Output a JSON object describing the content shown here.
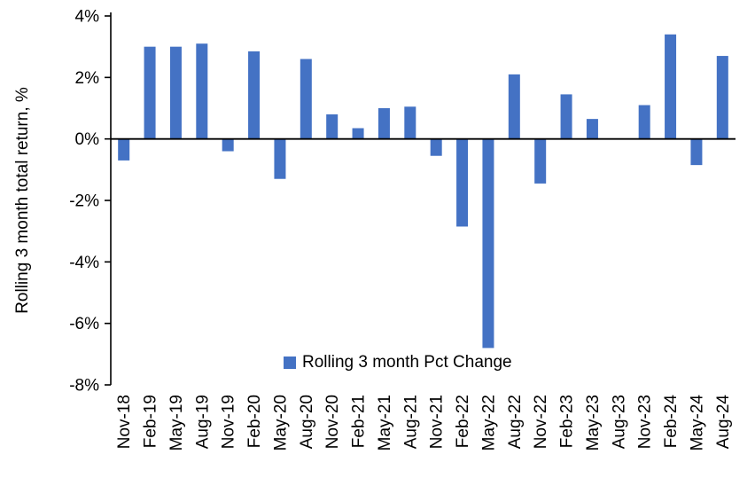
{
  "chart_data": {
    "type": "bar",
    "title": "",
    "xlabel": "",
    "ylabel": "Rolling 3 month total return, %",
    "ylim": [
      -8,
      4
    ],
    "ytick_step": 2,
    "ytick_labels": [
      "4%",
      "2%",
      "0%",
      "-2%",
      "-4%",
      "-6%",
      "-8%"
    ],
    "grid": false,
    "legend_position": "bottom-center-inside",
    "legend_label": "Rolling 3 month Pct Change",
    "bar_color": "#4472C4",
    "axis_color": "#000000",
    "categories": [
      "Nov-18",
      "Feb-19",
      "May-19",
      "Aug-19",
      "Nov-19",
      "Feb-20",
      "May-20",
      "Aug-20",
      "Nov-20",
      "Feb-21",
      "May-21",
      "Aug-21",
      "Nov-21",
      "Feb-22",
      "May-22",
      "Aug-22",
      "Nov-22",
      "Feb-23",
      "May-23",
      "Aug-23",
      "Nov-23",
      "Feb-24",
      "May-24",
      "Aug-24"
    ],
    "values": [
      -0.7,
      3.0,
      3.0,
      3.1,
      -0.4,
      2.85,
      -1.3,
      2.6,
      0.8,
      0.35,
      1.0,
      1.05,
      -0.55,
      -2.85,
      -6.8,
      2.1,
      -1.45,
      1.45,
      0.65,
      0.0,
      1.1,
      3.4,
      -0.85,
      2.7
    ]
  }
}
